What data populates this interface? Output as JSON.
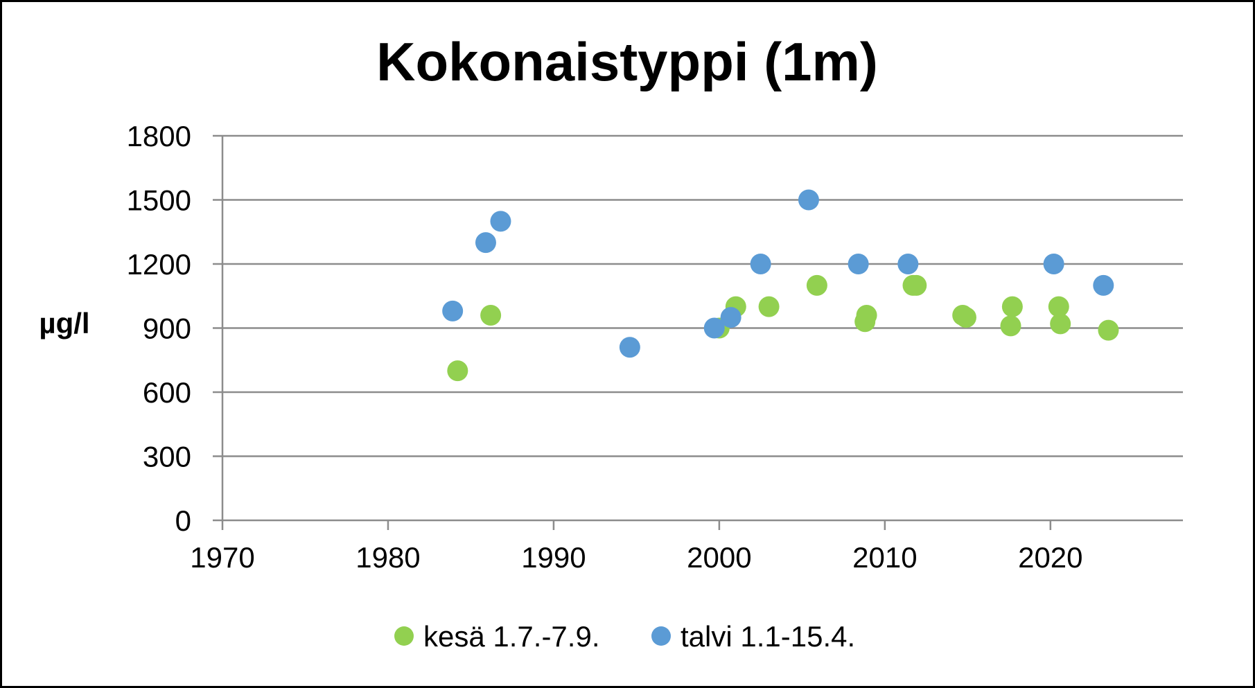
{
  "chart_data": {
    "type": "scatter",
    "title": "Kokonaistyppi (1m)",
    "xlabel": "",
    "ylabel": "µg/l",
    "xlim": [
      1970,
      2028
    ],
    "ylim": [
      0,
      1800
    ],
    "xticks": [
      1970,
      1980,
      1990,
      2000,
      2010,
      2020
    ],
    "yticks": [
      0,
      300,
      600,
      900,
      1200,
      1500,
      1800
    ],
    "grid": "horizontal",
    "legend_position": "bottom",
    "series": [
      {
        "name": "kesä 1.7.-7.9.",
        "color": "#92d050",
        "points": [
          {
            "x": 1984.2,
            "y": 700
          },
          {
            "x": 1986.2,
            "y": 960
          },
          {
            "x": 2000.0,
            "y": 900
          },
          {
            "x": 2001.0,
            "y": 1000
          },
          {
            "x": 2003.0,
            "y": 1000
          },
          {
            "x": 2005.9,
            "y": 1100
          },
          {
            "x": 2008.8,
            "y": 930
          },
          {
            "x": 2008.9,
            "y": 960
          },
          {
            "x": 2011.7,
            "y": 1100
          },
          {
            "x": 2011.9,
            "y": 1100
          },
          {
            "x": 2014.7,
            "y": 960
          },
          {
            "x": 2014.9,
            "y": 950
          },
          {
            "x": 2017.6,
            "y": 910
          },
          {
            "x": 2017.7,
            "y": 1000
          },
          {
            "x": 2020.5,
            "y": 1000
          },
          {
            "x": 2020.6,
            "y": 920
          },
          {
            "x": 2023.5,
            "y": 890
          }
        ]
      },
      {
        "name": "talvi 1.1-15.4.",
        "color": "#5b9bd5",
        "points": [
          {
            "x": 1983.9,
            "y": 980
          },
          {
            "x": 1985.9,
            "y": 1300
          },
          {
            "x": 1986.8,
            "y": 1400
          },
          {
            "x": 1994.6,
            "y": 810
          },
          {
            "x": 1999.7,
            "y": 900
          },
          {
            "x": 2000.7,
            "y": 950
          },
          {
            "x": 2002.5,
            "y": 1200
          },
          {
            "x": 2005.4,
            "y": 1500
          },
          {
            "x": 2008.4,
            "y": 1200
          },
          {
            "x": 2011.4,
            "y": 1200
          },
          {
            "x": 2020.2,
            "y": 1200
          },
          {
            "x": 2023.2,
            "y": 1100
          }
        ]
      }
    ]
  }
}
